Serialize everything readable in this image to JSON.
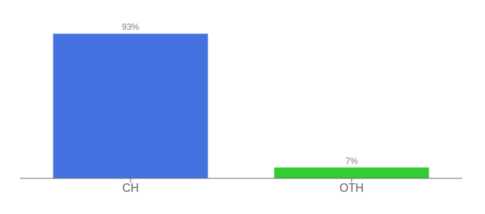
{
  "chart_data": {
    "type": "bar",
    "categories": [
      "CH",
      "OTH"
    ],
    "values": [
      93,
      7
    ],
    "value_labels": [
      "93%",
      "7%"
    ],
    "data_labels": true,
    "colors": [
      "#4472e0",
      "#33cc33"
    ],
    "ylim": [
      0,
      100
    ],
    "tick_labels": "x",
    "grid": false
  }
}
